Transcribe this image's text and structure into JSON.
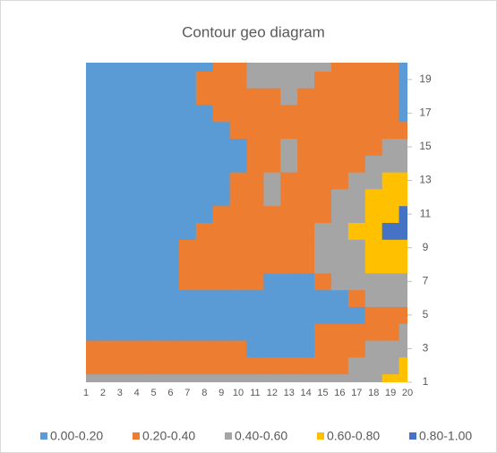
{
  "chart_data": {
    "type": "contour",
    "title": "Contour geo diagram",
    "categories": [
      1,
      2,
      3,
      4,
      5,
      6,
      7,
      8,
      9,
      10,
      11,
      12,
      13,
      14,
      15,
      16,
      17,
      18,
      19,
      20
    ],
    "y": [
      1,
      2,
      3,
      4,
      5,
      6,
      7,
      8,
      9,
      10,
      11,
      12,
      13,
      14,
      15,
      16,
      17,
      18,
      19,
      20
    ],
    "xlim": [
      1,
      20
    ],
    "ylim": [
      1,
      20
    ],
    "yticks": [
      1,
      3,
      5,
      7,
      9,
      11,
      13,
      15,
      17,
      19
    ],
    "legend": "bottom",
    "bands": [
      {
        "name": "0.00-0.20",
        "color": "#5b9bd5",
        "min": 0,
        "max": 0.2
      },
      {
        "name": "0.20-0.40",
        "color": "#ed7d31",
        "min": 0.2,
        "max": 0.4
      },
      {
        "name": "0.40-0.60",
        "color": "#a5a5a5",
        "min": 0.4,
        "max": 0.6
      },
      {
        "name": "0.60-0.80",
        "color": "#ffc000",
        "min": 0.6,
        "max": 0.8
      },
      {
        "name": "0.80-1.00",
        "color": "#4472c4",
        "min": 0.8,
        "max": 1
      }
    ],
    "z": [
      [
        0.42,
        0.42,
        0.42,
        0.42,
        0.42,
        0.42,
        0.42,
        0.42,
        0.42,
        0.42,
        0.42,
        0.42,
        0.42,
        0.42,
        0.42,
        0.42,
        0.45,
        0.55,
        0.65,
        0.7
      ],
      [
        0.3,
        0.3,
        0.3,
        0.3,
        0.3,
        0.3,
        0.3,
        0.3,
        0.3,
        0.3,
        0.3,
        0.3,
        0.3,
        0.35,
        0.35,
        0.35,
        0.45,
        0.5,
        0.55,
        0.6
      ],
      [
        0.25,
        0.25,
        0.25,
        0.25,
        0.25,
        0.25,
        0.25,
        0.25,
        0.25,
        0.25,
        0.15,
        0.15,
        0.15,
        0.15,
        0.3,
        0.3,
        0.3,
        0.4,
        0.45,
        0.5
      ],
      [
        0.1,
        0.1,
        0.1,
        0.1,
        0.1,
        0.1,
        0.1,
        0.1,
        0.1,
        0.1,
        0.1,
        0.1,
        0.1,
        0.1,
        0.2,
        0.2,
        0.2,
        0.3,
        0.35,
        0.4
      ],
      [
        0.05,
        0.05,
        0.05,
        0.05,
        0.05,
        0.05,
        0.05,
        0.05,
        0.05,
        0.05,
        0.05,
        0.05,
        0.05,
        0.05,
        0.05,
        0.05,
        0.05,
        0.25,
        0.25,
        0.25
      ],
      [
        0.1,
        0.1,
        0.1,
        0.1,
        0.15,
        0.15,
        0.15,
        0.15,
        0.15,
        0.15,
        0.18,
        0.18,
        0.18,
        0.18,
        0.18,
        0.18,
        0.35,
        0.45,
        0.5,
        0.5
      ],
      [
        0.1,
        0.1,
        0.1,
        0.1,
        0.1,
        0.1,
        0.2,
        0.3,
        0.3,
        0.3,
        0.3,
        0.18,
        0.18,
        0.18,
        0.3,
        0.4,
        0.45,
        0.5,
        0.55,
        0.55
      ],
      [
        0.1,
        0.1,
        0.1,
        0.1,
        0.1,
        0.1,
        0.25,
        0.35,
        0.35,
        0.35,
        0.35,
        0.35,
        0.3,
        0.35,
        0.4,
        0.45,
        0.5,
        0.6,
        0.65,
        0.65
      ],
      [
        0.1,
        0.1,
        0.1,
        0.1,
        0.1,
        0.1,
        0.2,
        0.3,
        0.35,
        0.35,
        0.35,
        0.35,
        0.35,
        0.38,
        0.42,
        0.5,
        0.55,
        0.65,
        0.75,
        0.75
      ],
      [
        0.1,
        0.1,
        0.1,
        0.1,
        0.1,
        0.1,
        0.1,
        0.25,
        0.35,
        0.35,
        0.35,
        0.35,
        0.35,
        0.35,
        0.4,
        0.5,
        0.6,
        0.7,
        0.8,
        0.9
      ],
      [
        0.1,
        0.1,
        0.1,
        0.1,
        0.1,
        0.1,
        0.1,
        0.1,
        0.25,
        0.35,
        0.35,
        0.35,
        0.35,
        0.3,
        0.38,
        0.45,
        0.55,
        0.62,
        0.7,
        0.85
      ],
      [
        0.1,
        0.1,
        0.1,
        0.1,
        0.1,
        0.1,
        0.1,
        0.1,
        0.15,
        0.3,
        0.38,
        0.45,
        0.35,
        0.3,
        0.35,
        0.4,
        0.5,
        0.6,
        0.65,
        0.7
      ],
      [
        0.1,
        0.1,
        0.1,
        0.1,
        0.1,
        0.1,
        0.1,
        0.1,
        0.1,
        0.2,
        0.35,
        0.42,
        0.38,
        0.3,
        0.3,
        0.35,
        0.45,
        0.55,
        0.6,
        0.6
      ],
      [
        0.1,
        0.1,
        0.1,
        0.1,
        0.1,
        0.1,
        0.1,
        0.1,
        0.1,
        0.15,
        0.3,
        0.38,
        0.45,
        0.35,
        0.3,
        0.3,
        0.38,
        0.45,
        0.5,
        0.5
      ],
      [
        0.1,
        0.1,
        0.1,
        0.1,
        0.1,
        0.1,
        0.1,
        0.1,
        0.1,
        0.15,
        0.25,
        0.35,
        0.4,
        0.38,
        0.3,
        0.25,
        0.3,
        0.35,
        0.4,
        0.4
      ],
      [
        0.1,
        0.1,
        0.1,
        0.1,
        0.1,
        0.1,
        0.1,
        0.1,
        0.15,
        0.25,
        0.35,
        0.3,
        0.35,
        0.35,
        0.3,
        0.25,
        0.3,
        0.3,
        0.25,
        0.2
      ],
      [
        0.1,
        0.1,
        0.1,
        0.1,
        0.1,
        0.1,
        0.1,
        0.15,
        0.3,
        0.35,
        0.3,
        0.25,
        0.3,
        0.35,
        0.3,
        0.3,
        0.25,
        0.25,
        0.2,
        0.05
      ],
      [
        0.1,
        0.1,
        0.1,
        0.1,
        0.1,
        0.1,
        0.1,
        0.2,
        0.35,
        0.35,
        0.3,
        0.35,
        0.4,
        0.35,
        0.3,
        0.25,
        0.25,
        0.25,
        0.2,
        0.1
      ],
      [
        0.1,
        0.1,
        0.1,
        0.1,
        0.1,
        0.1,
        0.1,
        0.2,
        0.3,
        0.35,
        0.4,
        0.45,
        0.45,
        0.4,
        0.35,
        0.3,
        0.25,
        0.25,
        0.2,
        0.15
      ],
      [
        0.1,
        0.1,
        0.1,
        0.1,
        0.1,
        0.1,
        0.1,
        0.15,
        0.25,
        0.35,
        0.45,
        0.5,
        0.5,
        0.45,
        0.4,
        0.35,
        0.3,
        0.25,
        0.25,
        0.15
      ]
    ]
  }
}
